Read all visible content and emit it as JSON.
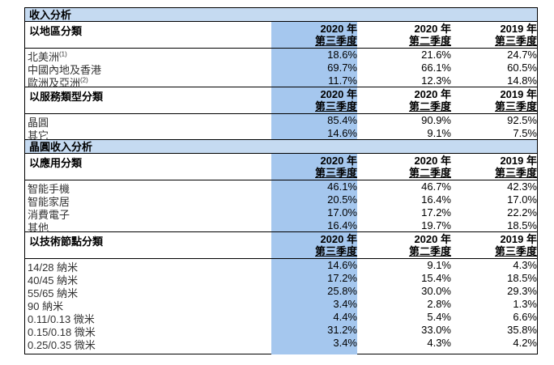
{
  "title": "收入分析",
  "header_cols": [
    {
      "year": "2020 年",
      "quarter": "第三季度"
    },
    {
      "year": "2020 年",
      "quarter": "第二季度"
    },
    {
      "year": "2019 年",
      "quarter": "第三季度"
    }
  ],
  "sections": [
    {
      "label": "以地區分類",
      "rows": [
        {
          "label": "北美洲",
          "note": "(1)",
          "values": [
            "18.6%",
            "21.6%",
            "24.7%"
          ]
        },
        {
          "label": "中國內地及香港",
          "note": "",
          "values": [
            "69.7%",
            "66.1%",
            "60.5%"
          ]
        },
        {
          "label": "歐洲及亞洲",
          "note": "(2)",
          "values": [
            "11.7%",
            "12.3%",
            "14.8%"
          ]
        }
      ]
    },
    {
      "label": "以服務類型分類",
      "rows": [
        {
          "label": "晶圓",
          "note": "",
          "values": [
            "85.4%",
            "90.9%",
            "92.5%"
          ]
        },
        {
          "label": "其它",
          "note": "",
          "values": [
            "14.6%",
            "9.1%",
            "7.5%"
          ]
        }
      ]
    },
    {
      "banner": "晶圓收入分析",
      "label": "以應用分類",
      "rows": [
        {
          "label": "智能手機",
          "note": "",
          "values": [
            "46.1%",
            "46.7%",
            "42.3%"
          ]
        },
        {
          "label": "智能家居",
          "note": "",
          "values": [
            "20.5%",
            "16.4%",
            "17.0%"
          ]
        },
        {
          "label": "消費電子",
          "note": "",
          "values": [
            "17.0%",
            "17.2%",
            "22.2%"
          ]
        },
        {
          "label": "其他",
          "note": "",
          "values": [
            "16.4%",
            "19.7%",
            "18.5%"
          ]
        }
      ]
    },
    {
      "label": "以技術節點分類",
      "rows": [
        {
          "label": "14/28 納米",
          "note": "",
          "values": [
            "14.6%",
            "9.1%",
            "4.3%"
          ]
        },
        {
          "label": "40/45 納米",
          "note": "",
          "values": [
            "17.2%",
            "15.4%",
            "18.5%"
          ]
        },
        {
          "label": "55/65 納米",
          "note": "",
          "values": [
            "25.8%",
            "30.0%",
            "29.3%"
          ]
        },
        {
          "label": "90 納米",
          "note": "",
          "values": [
            "3.4%",
            "2.8%",
            "1.3%"
          ]
        },
        {
          "label": "0.11/0.13 微米",
          "note": "",
          "values": [
            "4.4%",
            "5.4%",
            "6.6%"
          ]
        },
        {
          "label": "0.15/0.18 微米",
          "note": "",
          "values": [
            "31.2%",
            "33.0%",
            "35.8%"
          ]
        },
        {
          "label": "0.25/0.35 微米",
          "note": "",
          "values": [
            "3.4%",
            "4.3%",
            "4.2%"
          ]
        }
      ]
    }
  ]
}
